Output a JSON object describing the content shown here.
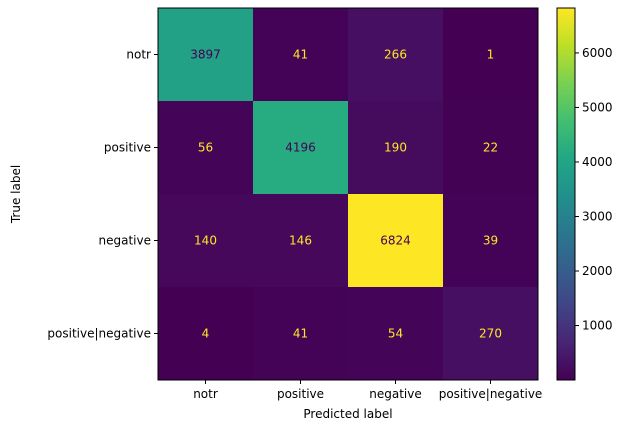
{
  "chart_data": {
    "type": "heatmap",
    "title": "",
    "xlabel": "Predicted label",
    "ylabel": "True label",
    "x_categories": [
      "notr",
      "positive",
      "negative",
      "positive|negative"
    ],
    "y_categories": [
      "notr",
      "positive",
      "negative",
      "positive|negative"
    ],
    "values": [
      [
        3897,
        41,
        266,
        1
      ],
      [
        56,
        4196,
        190,
        22
      ],
      [
        140,
        146,
        6824,
        39
      ],
      [
        4,
        41,
        54,
        270
      ]
    ],
    "colormap": "viridis",
    "colorbar": {
      "min": 1,
      "max": 6824,
      "ticks": [
        1000,
        2000,
        3000,
        4000,
        5000,
        6000
      ]
    },
    "label_colors": {
      "on_dark": "#fde725",
      "on_light": "#440154"
    },
    "grid": false
  }
}
